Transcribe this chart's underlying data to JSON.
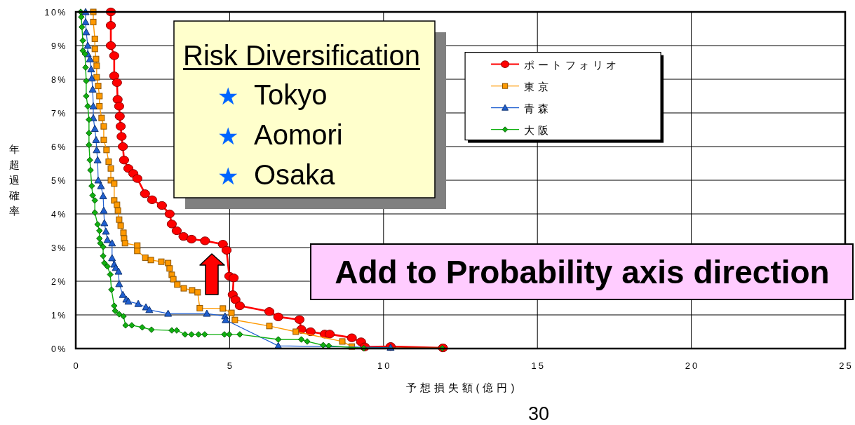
{
  "chart_data": {
    "type": "line",
    "xlabel": "予想損失額(億円)",
    "ylabel": "年超過確率",
    "xlim": [
      0,
      25
    ],
    "xticks": [
      0,
      5,
      10,
      15,
      20,
      25
    ],
    "ylim": [
      0,
      10
    ],
    "yticks": [
      {
        "value": 0,
        "label": "0%"
      },
      {
        "value": 1,
        "label": "1%"
      },
      {
        "value": 2,
        "label": "2%"
      },
      {
        "value": 3,
        "label": "3%"
      },
      {
        "value": 4,
        "label": "4%"
      },
      {
        "value": 5,
        "label": "5%"
      },
      {
        "value": 6,
        "label": "6%"
      },
      {
        "value": 7,
        "label": "7%"
      },
      {
        "value": 8,
        "label": "8%"
      },
      {
        "value": 9,
        "label": "9%"
      },
      {
        "value": 10,
        "label": "10%"
      }
    ],
    "grid": true,
    "legend": "top",
    "annotations": [
      "Risk Diversification",
      "★ Tokyo",
      "★ Aomori",
      "★ Osaka",
      "Add to Probability axis direction",
      "30"
    ],
    "series": [
      {
        "name": "ポートフォリオ",
        "color": "#ff0000",
        "marker": "circle",
        "x": [
          1.14,
          1.14,
          1.14,
          1.25,
          1.25,
          1.34,
          1.36,
          1.41,
          1.43,
          1.46,
          1.49,
          1.53,
          1.57,
          1.71,
          1.87,
          2.0,
          2.25,
          2.48,
          2.8,
          3.05,
          3.12,
          3.28,
          3.5,
          3.76,
          4.2,
          4.78,
          4.9,
          4.99,
          5.13,
          5.1,
          5.19,
          5.33,
          6.29,
          6.58,
          7.27,
          7.33,
          7.63,
          8.09,
          8.25,
          8.97,
          9.27,
          9.39,
          10.23,
          11.93
        ],
        "values": [
          10.0,
          9.6,
          9.0,
          8.7,
          8.1,
          7.9,
          7.4,
          7.2,
          6.9,
          6.6,
          6.3,
          6.0,
          5.6,
          5.35,
          5.2,
          5.05,
          4.6,
          4.42,
          4.25,
          4.0,
          3.7,
          3.5,
          3.33,
          3.25,
          3.2,
          3.1,
          2.92,
          2.15,
          2.1,
          1.6,
          1.45,
          1.27,
          1.1,
          0.94,
          0.86,
          0.57,
          0.5,
          0.43,
          0.43,
          0.32,
          0.2,
          0.05,
          0.06,
          0.02
        ]
      },
      {
        "name": "東京",
        "color": "#ff9900",
        "marker": "square",
        "x": [
          0.57,
          0.57,
          0.62,
          0.62,
          0.66,
          0.68,
          0.68,
          0.73,
          0.77,
          0.77,
          0.84,
          0.91,
          0.91,
          1.0,
          1.07,
          1.14,
          1.14,
          1.25,
          1.25,
          1.34,
          1.37,
          1.41,
          1.46,
          1.55,
          1.57,
          1.6,
          2.0,
          2.0,
          2.26,
          2.44,
          2.78,
          3.0,
          3.05,
          3.12,
          3.17,
          3.3,
          3.51,
          3.78,
          3.96,
          4.03,
          4.78,
          5.06,
          5.17,
          6.29,
          7.15,
          8.66,
          8.97
        ],
        "values": [
          10.0,
          9.7,
          9.2,
          8.9,
          8.6,
          8.4,
          8.06,
          7.8,
          7.5,
          7.2,
          6.85,
          6.6,
          6.2,
          5.9,
          5.55,
          5.35,
          5.0,
          4.9,
          4.4,
          4.27,
          4.1,
          3.83,
          3.65,
          3.44,
          3.27,
          3.13,
          3.06,
          2.9,
          2.7,
          2.63,
          2.58,
          2.54,
          2.38,
          2.19,
          2.06,
          1.9,
          1.79,
          1.73,
          1.67,
          1.2,
          1.19,
          1.06,
          0.85,
          0.67,
          0.5,
          0.21,
          0.06
        ]
      },
      {
        "name": "青森",
        "color": "#1f5fd0",
        "marker": "triangle",
        "x": [
          0.32,
          0.32,
          0.34,
          0.39,
          0.39,
          0.46,
          0.5,
          0.52,
          0.55,
          0.57,
          0.57,
          0.62,
          0.66,
          0.68,
          0.71,
          0.73,
          0.82,
          0.89,
          0.91,
          0.93,
          0.98,
          1.03,
          1.18,
          1.18,
          1.25,
          1.3,
          1.39,
          1.41,
          1.53,
          1.64,
          1.71,
          2.03,
          2.28,
          2.39,
          3.0,
          4.26,
          4.85,
          4.87,
          6.58,
          10.23
        ],
        "values": [
          10.0,
          9.7,
          9.4,
          9.0,
          8.75,
          8.6,
          8.3,
          8.03,
          7.7,
          7.2,
          6.85,
          6.53,
          6.2,
          5.9,
          5.6,
          5.0,
          4.83,
          4.53,
          4.1,
          3.73,
          3.48,
          3.23,
          3.13,
          2.69,
          2.5,
          2.4,
          2.29,
          1.92,
          1.6,
          1.46,
          1.4,
          1.33,
          1.23,
          1.15,
          1.04,
          1.04,
          0.96,
          0.85,
          0.08,
          0.03
        ]
      },
      {
        "name": "大阪",
        "color": "#10b010",
        "marker": "diamond",
        "x": [
          0.16,
          0.18,
          0.2,
          0.23,
          0.23,
          0.3,
          0.32,
          0.34,
          0.34,
          0.39,
          0.43,
          0.43,
          0.43,
          0.46,
          0.48,
          0.52,
          0.55,
          0.62,
          0.62,
          0.71,
          0.77,
          0.77,
          0.8,
          0.89,
          0.89,
          0.93,
          1.03,
          1.12,
          1.16,
          1.25,
          1.28,
          1.41,
          1.55,
          1.62,
          1.82,
          2.16,
          2.46,
          3.12,
          3.28,
          3.55,
          3.76,
          3.99,
          4.19,
          4.83,
          4.99,
          5.33,
          6.58,
          7.33,
          7.52,
          8.04,
          8.22,
          9.36,
          11.91
        ],
        "values": [
          10.0,
          9.85,
          9.55,
          9.15,
          8.85,
          8.75,
          8.35,
          7.95,
          7.5,
          7.2,
          6.8,
          6.4,
          6.05,
          5.6,
          5.3,
          4.83,
          4.55,
          4.4,
          4.04,
          3.69,
          3.5,
          3.27,
          3.13,
          3.02,
          2.75,
          2.54,
          2.44,
          2.2,
          1.75,
          1.27,
          1.12,
          1.02,
          0.96,
          0.69,
          0.69,
          0.63,
          0.56,
          0.54,
          0.54,
          0.42,
          0.42,
          0.42,
          0.42,
          0.42,
          0.42,
          0.42,
          0.27,
          0.27,
          0.21,
          0.1,
          0.08,
          0.01,
          0.01
        ]
      }
    ]
  }
}
